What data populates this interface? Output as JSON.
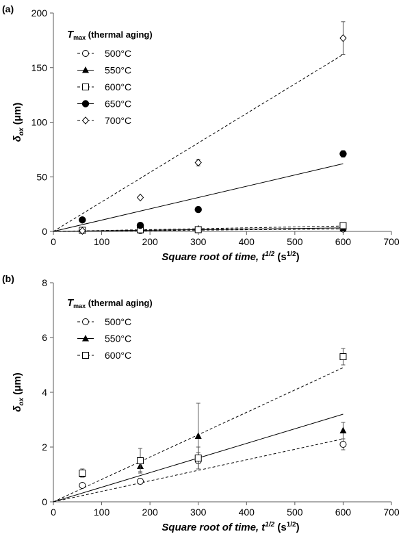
{
  "chart_data": [
    {
      "type": "scatter",
      "panel_label": "(a)",
      "xlabel": "Square root of time,",
      "xlabel_sym": "t",
      "xlabel_sup": "1/2",
      "xlabel_unit_pre": "(s",
      "xlabel_unit_sup": "1/2",
      "xlabel_unit_post": ")",
      "ylabel_sym": "δ",
      "ylabel_sub": "ox",
      "ylabel_unit": "(μm)",
      "xlim": [
        0,
        700
      ],
      "ylim": [
        0,
        200
      ],
      "x_ticks": [
        "0",
        "100",
        "200",
        "300",
        "400",
        "500",
        "600",
        "700"
      ],
      "y_ticks": [
        "0",
        "50",
        "100",
        "150",
        "200"
      ],
      "legend_title_pre": "T",
      "legend_title_sub": "max",
      "legend_title_post": "(thermal aging)",
      "legend_position": "top-left",
      "series": [
        {
          "name": "500°C",
          "marker": "open-circle",
          "line": "dashed",
          "x": [
            60,
            180,
            300,
            600
          ],
          "y": [
            0.6,
            0.75,
            1.5,
            2.1
          ],
          "err": [
            0,
            0,
            0,
            0
          ],
          "fit_end": 2.3
        },
        {
          "name": "550°C",
          "marker": "filled-triangle",
          "line": "solid",
          "x": [
            60,
            180,
            300,
            600
          ],
          "y": [
            1.0,
            1.3,
            2.4,
            2.6
          ],
          "err": [
            0,
            0,
            0,
            0
          ],
          "fit_end": 3.2
        },
        {
          "name": "600°C",
          "marker": "open-square",
          "line": "dashed",
          "x": [
            60,
            180,
            300,
            600
          ],
          "y": [
            1.05,
            1.5,
            1.6,
            5.3
          ],
          "err": [
            0,
            0,
            0,
            0
          ],
          "fit_end": 4.9
        },
        {
          "name": "650°C",
          "marker": "filled-circle",
          "line": "solid",
          "x": [
            60,
            180,
            300,
            600
          ],
          "y": [
            10.5,
            5.5,
            20,
            71
          ],
          "err": [
            0,
            0,
            0,
            3
          ],
          "fit_end": 62
        },
        {
          "name": "700°C",
          "marker": "open-diamond",
          "line": "dashed",
          "x": [
            60,
            180,
            300,
            600
          ],
          "y": [
            0.5,
            31,
            63,
            177
          ],
          "err": [
            0,
            0,
            3,
            15
          ],
          "fit_end": 162
        }
      ]
    },
    {
      "type": "scatter",
      "panel_label": "(b)",
      "xlabel": "Square root of time,",
      "xlabel_sym": "t",
      "xlabel_sup": "1/2",
      "xlabel_unit_pre": "(s",
      "xlabel_unit_sup": "1/2",
      "xlabel_unit_post": ")",
      "ylabel_sym": "δ",
      "ylabel_sub": "ox",
      "ylabel_unit": "(μm)",
      "xlim": [
        0,
        700
      ],
      "ylim": [
        0,
        8
      ],
      "x_ticks": [
        "0",
        "100",
        "200",
        "300",
        "400",
        "500",
        "600",
        "700"
      ],
      "y_ticks": [
        "0",
        "2",
        "4",
        "6",
        "8"
      ],
      "legend_title_pre": "T",
      "legend_title_sub": "max",
      "legend_title_post": "(thermal aging)",
      "legend_position": "top-left",
      "series": [
        {
          "name": "500°C",
          "marker": "open-circle",
          "line": "dashed",
          "x": [
            60,
            180,
            300,
            600
          ],
          "y": [
            0.6,
            0.75,
            1.5,
            2.1
          ],
          "err": [
            0.08,
            0.1,
            0.3,
            0.2
          ],
          "fit_end": 2.3
        },
        {
          "name": "550°C",
          "marker": "filled-triangle",
          "line": "solid",
          "x": [
            60,
            180,
            300,
            600
          ],
          "y": [
            1.0,
            1.3,
            2.4,
            2.6
          ],
          "err": [
            0.1,
            0.2,
            1.2,
            0.3
          ],
          "fit_end": 3.2
        },
        {
          "name": "600°C",
          "marker": "open-square",
          "line": "dashed",
          "x": [
            60,
            180,
            300,
            600
          ],
          "y": [
            1.05,
            1.5,
            1.6,
            5.3
          ],
          "err": [
            0.15,
            0.45,
            0.4,
            0.3
          ],
          "fit_end": 4.9
        }
      ]
    }
  ]
}
